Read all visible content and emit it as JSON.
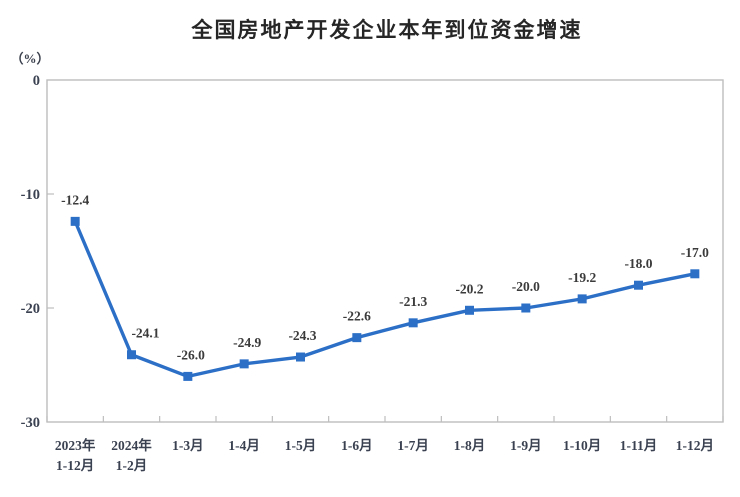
{
  "page": {
    "title": "全国房地产开发企业本年到位资金增速",
    "unit_label": "（%）"
  },
  "chart_data": {
    "type": "line",
    "title": "全国房地产开发企业本年到位资金增速",
    "unit_label": "（%）",
    "categories": [
      "2023年\n1-12月",
      "2024年\n1-2月",
      "1-3月",
      "1-4月",
      "1-5月",
      "1-6月",
      "1-7月",
      "1-8月",
      "1-9月",
      "1-10月",
      "1-11月",
      "1-12月"
    ],
    "values": [
      -12.4,
      -24.1,
      -26.0,
      -24.9,
      -24.3,
      -22.6,
      -21.3,
      -20.2,
      -20.0,
      -19.2,
      -18.0,
      -17.0
    ],
    "value_labels": [
      "-12.4",
      "-24.1",
      "-26.0",
      "-24.9",
      "-24.3",
      "-22.6",
      "-21.3",
      "-20.2",
      "-20.0",
      "-19.2",
      "-18.0",
      "-17.0"
    ],
    "label_dx": [
      0,
      14,
      3,
      3,
      2,
      0,
      0,
      0,
      0,
      0,
      0,
      0
    ],
    "y_ticks": [
      0,
      -10,
      -20,
      -30
    ],
    "y_tick_labels": [
      "0",
      "-10",
      "-20",
      "-30"
    ],
    "ylim": [
      -30,
      0
    ],
    "grid": false,
    "legend": "none",
    "marker": "square",
    "colors": {
      "line": "#2B6FC7",
      "marker_fill": "#2B6FC7",
      "axis": "#BDBDBD",
      "tick_text": "#3A4150",
      "value_label_text": "#3B3B3B",
      "title_text": "#262626"
    }
  }
}
